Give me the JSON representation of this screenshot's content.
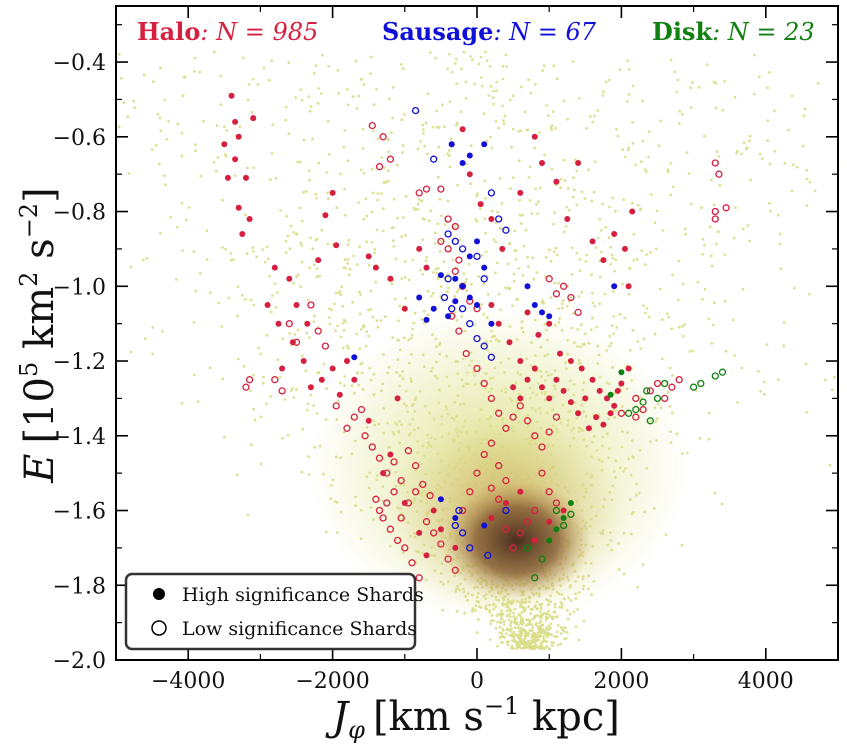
{
  "chart_data": {
    "type": "scatter",
    "x_axis": {
      "label_main": "J",
      "label_sub": "φ",
      "label_units": "[km s",
      "label_units_sup": "−1",
      "label_units_tail": " kpc]",
      "range": [
        -5000,
        5000
      ],
      "ticks": [
        -4000,
        -2000,
        0,
        2000,
        4000
      ],
      "tick_labels": [
        "−4000",
        "−2000",
        "0",
        "2000",
        "4000"
      ]
    },
    "y_axis": {
      "label_main": "E",
      "label_units": "[10",
      "label_units_sup1": "5",
      "label_units_mid": " km",
      "label_units_sup2": "2",
      "label_units_s": " s",
      "label_units_sup3": "−2",
      "label_units_tail": "]",
      "range": [
        -2.0,
        -0.25
      ],
      "ticks": [
        -2.0,
        -1.8,
        -1.6,
        -1.4,
        -1.2,
        -1.0,
        -0.8,
        -0.6,
        -0.4
      ],
      "tick_labels": [
        "−2.0",
        "−1.8",
        "−1.6",
        "−1.4",
        "−1.2",
        "−1.0",
        "−0.8",
        "−0.6",
        "−0.4"
      ]
    },
    "header": [
      {
        "name": "Halo",
        "label": ": N = 985",
        "color": "#d6203f"
      },
      {
        "name": "Sausage",
        "label": ": N = 67",
        "color": "#1010d8"
      },
      {
        "name": "Disk",
        "label": ": N = 23",
        "color": "#108010"
      }
    ],
    "legend": {
      "placement": "bottom-left",
      "entries": [
        {
          "label": "High significance Shards",
          "marker": "filled-circle"
        },
        {
          "label": "Low significance Shards",
          "marker": "open-circle"
        }
      ]
    },
    "background": {
      "description_colors": {
        "sparse": "#dfe28e",
        "mid": "#c9a65d",
        "dense": "#5a3a24"
      },
      "density_peak": {
        "x": 550,
        "y": -1.68
      }
    },
    "series": [
      {
        "name": "Halo",
        "color": "#d6203f",
        "high_significance": [
          [
            -3400,
            -0.49
          ],
          [
            -3350,
            -0.56
          ],
          [
            -3300,
            -0.6
          ],
          [
            -3500,
            -0.62
          ],
          [
            -3350,
            -0.66
          ],
          [
            -3200,
            -0.71
          ],
          [
            -3300,
            -0.79
          ],
          [
            -3150,
            -0.82
          ],
          [
            -3250,
            -0.86
          ],
          [
            -3450,
            -0.71
          ],
          [
            -3100,
            -0.55
          ],
          [
            -2000,
            -0.75
          ],
          [
            -2100,
            -0.81
          ],
          [
            -1950,
            -0.89
          ],
          [
            -2200,
            -0.93
          ],
          [
            -2800,
            -0.95
          ],
          [
            -2600,
            -0.98
          ],
          [
            -2900,
            -1.05
          ],
          [
            -2750,
            -1.1
          ],
          [
            -2550,
            -1.15
          ],
          [
            -2700,
            -1.22
          ],
          [
            -2400,
            -1.2
          ],
          [
            -2300,
            -1.27
          ],
          [
            -2150,
            -1.25
          ],
          [
            -2000,
            -1.22
          ],
          [
            -1900,
            -1.29
          ],
          [
            -1800,
            -1.2
          ],
          [
            -1700,
            -1.25
          ],
          [
            -2500,
            -1.05
          ],
          [
            -2350,
            -1.1
          ],
          [
            -1500,
            -0.92
          ],
          [
            -1400,
            -0.95
          ],
          [
            -1200,
            -0.98
          ],
          [
            -1000,
            -1.06
          ],
          [
            -800,
            -0.9
          ],
          [
            -700,
            -0.95
          ],
          [
            -200,
            -0.58
          ],
          [
            -350,
            -0.62
          ],
          [
            -100,
            -0.7
          ],
          [
            50,
            -0.78
          ],
          [
            200,
            -0.82
          ],
          [
            350,
            -0.9
          ],
          [
            600,
            -0.75
          ],
          [
            800,
            -0.6
          ],
          [
            900,
            -0.67
          ],
          [
            1100,
            -0.72
          ],
          [
            1250,
            -0.82
          ],
          [
            1400,
            -0.67
          ],
          [
            1600,
            -0.88
          ],
          [
            1750,
            -0.93
          ],
          [
            1900,
            -0.86
          ],
          [
            2050,
            -0.9
          ],
          [
            2150,
            -0.8
          ],
          [
            2100,
            -1.0
          ],
          [
            200,
            -1.05
          ],
          [
            300,
            -1.1
          ],
          [
            450,
            -1.15
          ],
          [
            600,
            -1.2
          ],
          [
            700,
            -1.07
          ],
          [
            850,
            -1.13
          ],
          [
            1000,
            -1.1
          ],
          [
            1150,
            -1.18
          ],
          [
            1300,
            -1.2
          ],
          [
            1450,
            -1.22
          ],
          [
            1600,
            -1.25
          ],
          [
            1700,
            -1.28
          ],
          [
            1800,
            -1.3
          ],
          [
            1900,
            -1.32
          ],
          [
            2000,
            -1.26
          ],
          [
            2100,
            -1.22
          ],
          [
            1500,
            -1.3
          ],
          [
            1400,
            -1.34
          ],
          [
            1300,
            -1.31
          ],
          [
            1200,
            -1.28
          ],
          [
            1100,
            -1.25
          ],
          [
            1000,
            -1.3
          ],
          [
            900,
            -1.27
          ],
          [
            800,
            -1.22
          ],
          [
            700,
            -1.25
          ],
          [
            600,
            -1.3
          ],
          [
            500,
            -1.27
          ],
          [
            1650,
            -1.35
          ],
          [
            1550,
            -1.38
          ],
          [
            1750,
            -1.37
          ],
          [
            1850,
            -1.34
          ],
          [
            1950,
            -1.28
          ],
          [
            -600,
            -1.6
          ],
          [
            -500,
            -1.65
          ],
          [
            -300,
            -1.7
          ],
          [
            -800,
            -1.66
          ],
          [
            -1000,
            -1.58
          ],
          [
            -700,
            -1.72
          ],
          [
            200,
            -1.62
          ],
          [
            400,
            -1.58
          ],
          [
            600,
            -1.55
          ],
          [
            800,
            -1.68
          ],
          [
            1000,
            -1.63
          ],
          [
            1200,
            -1.6
          ],
          [
            -1200,
            -1.45
          ],
          [
            -1300,
            -1.5
          ],
          [
            -1500,
            -1.36
          ],
          [
            -1100,
            -1.3
          ]
        ],
        "low_significance": [
          [
            -3200,
            -1.27
          ],
          [
            -3150,
            -1.25
          ],
          [
            -2800,
            -1.25
          ],
          [
            -2700,
            -1.28
          ],
          [
            -2500,
            -1.15
          ],
          [
            -2600,
            -1.1
          ],
          [
            -2300,
            -1.05
          ],
          [
            -2200,
            -1.12
          ],
          [
            -2100,
            -1.16
          ],
          [
            -1950,
            -1.32
          ],
          [
            -1800,
            -1.38
          ],
          [
            -1700,
            -1.35
          ],
          [
            -1600,
            -1.33
          ],
          [
            -1550,
            -1.4
          ],
          [
            -1450,
            -1.43
          ],
          [
            -1350,
            -1.46
          ],
          [
            -1250,
            -1.5
          ],
          [
            -1150,
            -1.47
          ],
          [
            -1050,
            -1.52
          ],
          [
            -950,
            -1.44
          ],
          [
            -850,
            -1.48
          ],
          [
            -750,
            -1.53
          ],
          [
            -650,
            -1.56
          ],
          [
            -1300,
            -1.62
          ],
          [
            -1200,
            -1.65
          ],
          [
            -1100,
            -1.68
          ],
          [
            -1000,
            -1.7
          ],
          [
            -900,
            -1.74
          ],
          [
            -800,
            -1.78
          ],
          [
            -700,
            -1.63
          ],
          [
            -600,
            -1.66
          ],
          [
            -500,
            -1.69
          ],
          [
            -400,
            -1.73
          ],
          [
            -300,
            -1.76
          ],
          [
            -200,
            -1.6
          ],
          [
            -100,
            -1.55
          ],
          [
            0,
            -1.5
          ],
          [
            100,
            -1.45
          ],
          [
            200,
            -1.42
          ],
          [
            300,
            -1.48
          ],
          [
            400,
            -1.52
          ],
          [
            -1400,
            -1.57
          ],
          [
            -1350,
            -1.6
          ],
          [
            -1250,
            -1.58
          ],
          [
            -1150,
            -1.55
          ],
          [
            -1050,
            -1.62
          ],
          [
            -950,
            -1.58
          ],
          [
            -850,
            -1.55
          ],
          [
            -1450,
            -0.57
          ],
          [
            -1300,
            -0.6
          ],
          [
            -1200,
            -0.66
          ],
          [
            -1350,
            -0.68
          ],
          [
            -800,
            -0.75
          ],
          [
            -700,
            -0.74
          ],
          [
            -400,
            -0.82
          ],
          [
            -300,
            -0.84
          ],
          [
            -500,
            -0.88
          ],
          [
            -300,
            -0.96
          ],
          [
            -200,
            -1.0
          ],
          [
            -100,
            -1.04
          ],
          [
            0,
            -1.06
          ],
          [
            -350,
            -1.08
          ],
          [
            -250,
            -1.12
          ],
          [
            -150,
            -1.18
          ],
          [
            0,
            -1.22
          ],
          [
            100,
            -1.26
          ],
          [
            200,
            -1.3
          ],
          [
            300,
            -1.34
          ],
          [
            400,
            -1.38
          ],
          [
            500,
            -1.35
          ],
          [
            600,
            -1.32
          ],
          [
            700,
            -1.36
          ],
          [
            800,
            -1.4
          ],
          [
            900,
            -1.43
          ],
          [
            1000,
            -1.39
          ],
          [
            1100,
            -1.35
          ],
          [
            1200,
            -1.0
          ],
          [
            1300,
            -1.03
          ],
          [
            1400,
            -1.07
          ],
          [
            1000,
            -0.98
          ],
          [
            1100,
            -1.02
          ],
          [
            2200,
            -1.3
          ],
          [
            2300,
            -1.33
          ],
          [
            2400,
            -1.28
          ],
          [
            2500,
            -1.26
          ],
          [
            2600,
            -1.3
          ],
          [
            2700,
            -1.27
          ],
          [
            2800,
            -1.25
          ],
          [
            2200,
            -1.35
          ],
          [
            2000,
            -1.34
          ],
          [
            3300,
            -0.67
          ],
          [
            3350,
            -0.7
          ],
          [
            3300,
            -0.8
          ],
          [
            3300,
            -0.82
          ],
          [
            3450,
            -0.79
          ],
          [
            -500,
            -0.74
          ],
          [
            -400,
            -0.9
          ],
          [
            -250,
            -0.93
          ],
          [
            900,
            -1.5
          ],
          [
            1000,
            -1.55
          ],
          [
            1100,
            -1.58
          ],
          [
            800,
            -1.6
          ],
          [
            700,
            -1.63
          ],
          [
            600,
            -1.66
          ],
          [
            500,
            -1.7
          ],
          [
            400,
            -1.65
          ],
          [
            300,
            -1.57
          ],
          [
            200,
            -1.54
          ]
        ]
      },
      {
        "name": "Sausage",
        "color": "#1010d8",
        "high_significance": [
          [
            -350,
            -0.62
          ],
          [
            -200,
            -0.67
          ],
          [
            -100,
            -0.65
          ],
          [
            100,
            -0.62
          ],
          [
            0,
            -0.88
          ],
          [
            -100,
            -0.92
          ],
          [
            100,
            -0.95
          ],
          [
            -500,
            -0.97
          ],
          [
            -300,
            -0.98
          ],
          [
            -200,
            -1.0
          ],
          [
            -100,
            -1.03
          ],
          [
            0,
            -1.05
          ],
          [
            -800,
            -1.03
          ],
          [
            -700,
            -1.09
          ],
          [
            -600,
            -1.06
          ],
          [
            -400,
            -1.08
          ],
          [
            -300,
            -1.04
          ],
          [
            200,
            -1.1
          ],
          [
            700,
            -1.0
          ],
          [
            800,
            -1.05
          ],
          [
            900,
            -1.07
          ],
          [
            1000,
            -1.08
          ],
          [
            1900,
            -1.0
          ],
          [
            -1700,
            -1.19
          ],
          [
            -500,
            -1.57
          ],
          [
            -300,
            -1.62
          ],
          [
            100,
            -1.64
          ]
        ],
        "low_significance": [
          [
            -850,
            -0.53
          ],
          [
            -600,
            -0.66
          ],
          [
            -400,
            -0.86
          ],
          [
            -300,
            -0.88
          ],
          [
            -200,
            -0.9
          ],
          [
            0,
            -0.92
          ],
          [
            100,
            -0.98
          ],
          [
            200,
            -0.75
          ],
          [
            300,
            -0.82
          ],
          [
            400,
            -0.85
          ],
          [
            -400,
            -0.98
          ],
          [
            -200,
            -1.06
          ],
          [
            -100,
            -1.1
          ],
          [
            0,
            -1.14
          ],
          [
            100,
            -1.16
          ],
          [
            200,
            -1.19
          ],
          [
            -350,
            -1.06
          ],
          [
            -450,
            -1.03
          ],
          [
            -300,
            -1.64
          ],
          [
            -250,
            -1.6
          ],
          [
            -100,
            -1.7
          ],
          [
            400,
            -1.6
          ],
          [
            -200,
            -1.66
          ],
          [
            150,
            -1.72
          ]
        ]
      },
      {
        "name": "Disk",
        "color": "#108010",
        "high_significance": [
          [
            1850,
            -1.29
          ],
          [
            2000,
            -1.23
          ],
          [
            1300,
            -1.58
          ],
          [
            1200,
            -1.62
          ],
          [
            1100,
            -1.65
          ],
          [
            1000,
            -1.68
          ]
        ],
        "low_significance": [
          [
            2100,
            -1.34
          ],
          [
            2200,
            -1.33
          ],
          [
            2300,
            -1.31
          ],
          [
            2400,
            -1.36
          ],
          [
            2500,
            -1.3
          ],
          [
            2600,
            -1.26
          ],
          [
            3000,
            -1.27
          ],
          [
            3100,
            -1.26
          ],
          [
            3300,
            -1.24
          ],
          [
            3400,
            -1.23
          ],
          [
            1300,
            -1.61
          ],
          [
            1200,
            -1.64
          ],
          [
            900,
            -1.73
          ],
          [
            800,
            -1.78
          ],
          [
            700,
            -1.7
          ],
          [
            1100,
            -1.6
          ],
          [
            2350,
            -1.28
          ]
        ]
      }
    ]
  }
}
